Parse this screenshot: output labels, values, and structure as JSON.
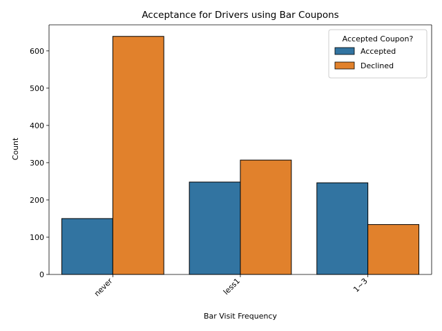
{
  "chart_data": {
    "type": "bar",
    "title": "Acceptance for Drivers using Bar Coupons",
    "xlabel": "Bar Visit Frequency",
    "ylabel": "Count",
    "categories": [
      "never",
      "less1",
      "1~3"
    ],
    "series": [
      {
        "name": "Accepted",
        "values": [
          150,
          248,
          246
        ],
        "color": "#3274a1"
      },
      {
        "name": "Declined",
        "values": [
          639,
          307,
          134
        ],
        "color": "#e1812c"
      }
    ],
    "ylim": [
      0,
      670
    ],
    "yticks": [
      0,
      100,
      200,
      300,
      400,
      500,
      600
    ],
    "legend": {
      "title": "Accepted Coupon?",
      "position": "top-right"
    },
    "grid": false
  }
}
